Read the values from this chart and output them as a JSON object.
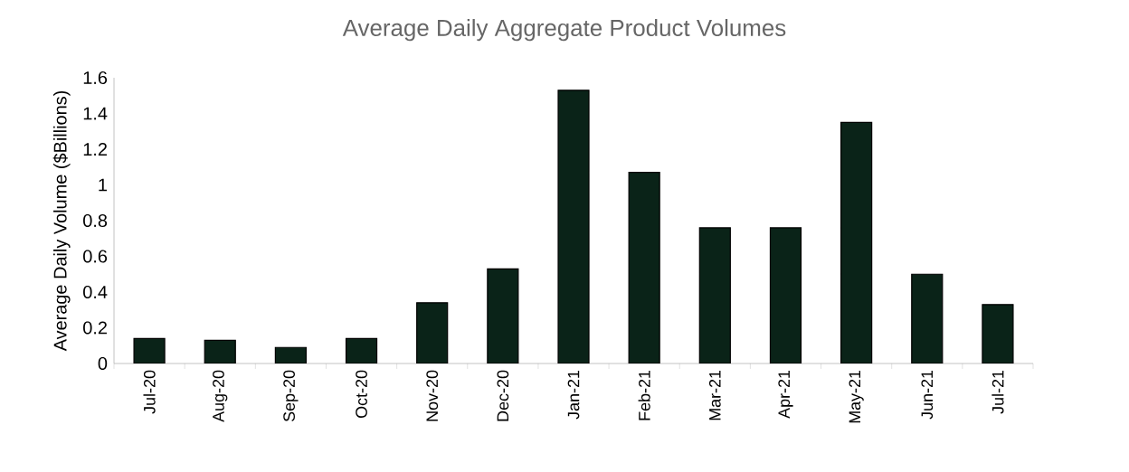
{
  "chart_data": {
    "type": "bar",
    "title": "Average Daily Aggregate Product Volumes",
    "ylabel": "Average Daily Volume ($Billions)",
    "categories": [
      "Jul-20",
      "Aug-20",
      "Sep-20",
      "Oct-20",
      "Nov-20",
      "Dec-20",
      "Jan-21",
      "Feb-21",
      "Mar-21",
      "Apr-21",
      "May-21",
      "Jun-21",
      "Jul-21"
    ],
    "values": [
      0.14,
      0.13,
      0.09,
      0.14,
      0.34,
      0.53,
      1.53,
      1.07,
      0.76,
      0.76,
      1.35,
      0.5,
      0.33
    ],
    "color": "#0a2318",
    "ylim": [
      0,
      1.6
    ],
    "yticks": [
      0,
      0.2,
      0.4,
      0.6,
      0.8,
      1,
      1.2,
      1.4,
      1.6
    ],
    "grid": false
  }
}
